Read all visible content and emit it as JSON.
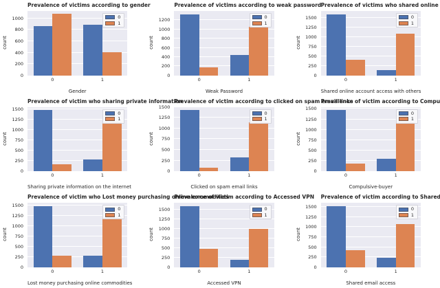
{
  "figure": {
    "background": "#ffffff",
    "axes_background": "#eaeaf2",
    "grid_color": "#ffffff",
    "series_colors": {
      "0": "#4c72b0",
      "1": "#dd8452"
    },
    "legend_labels": [
      "0",
      "1"
    ],
    "legend_position": "upper right",
    "grid": true
  },
  "chart_data": [
    {
      "type": "bar",
      "title": "Prevalence of victims according to gender",
      "xlabel": "Gender",
      "ylabel": "count",
      "categories": [
        "0",
        "1"
      ],
      "series": [
        {
          "name": "0",
          "color": "#4c72b0",
          "values": [
            870,
            890
          ]
        },
        {
          "name": "1",
          "color": "#dd8452",
          "values": [
            1080,
            410
          ]
        }
      ],
      "yticks": [
        0,
        200,
        400,
        600,
        800,
        1000
      ],
      "ylim": [
        0,
        1130
      ],
      "legend": [
        "0",
        "1"
      ],
      "legend_position": "upper right"
    },
    {
      "type": "bar",
      "title": "Prevalence of victims according to weak password",
      "xlabel": "Weak Password",
      "ylabel": "count",
      "categories": [
        "0",
        "1"
      ],
      "series": [
        {
          "name": "0",
          "color": "#4c72b0",
          "values": [
            1330,
            440
          ]
        },
        {
          "name": "1",
          "color": "#dd8452",
          "values": [
            170,
            1060
          ]
        }
      ],
      "yticks": [
        0,
        200,
        400,
        600,
        800,
        1000,
        1200
      ],
      "ylim": [
        0,
        1400
      ],
      "legend": [
        "0",
        "1"
      ],
      "legend_position": "upper right"
    },
    {
      "type": "bar",
      "title": "Prevalence of victims who shared online account access with others",
      "xlabel": "Shared online account access with others",
      "ylabel": "count",
      "categories": [
        "0",
        "1"
      ],
      "series": [
        {
          "name": "0",
          "color": "#4c72b0",
          "values": [
            1590,
            130
          ]
        },
        {
          "name": "1",
          "color": "#dd8452",
          "values": [
            400,
            1090
          ]
        }
      ],
      "yticks": [
        0,
        250,
        500,
        750,
        1000,
        1250,
        1500
      ],
      "ylim": [
        0,
        1670
      ],
      "legend": [
        "0",
        "1"
      ],
      "legend_position": "upper right"
    },
    {
      "type": "bar",
      "title": "Prevalence of victim who sharing private information",
      "xlabel": "Sharing private information on the internet",
      "ylabel": "count",
      "categories": [
        "0",
        "1"
      ],
      "series": [
        {
          "name": "0",
          "color": "#4c72b0",
          "values": [
            1480,
            290
          ]
        },
        {
          "name": "1",
          "color": "#dd8452",
          "values": [
            180,
            1180
          ]
        }
      ],
      "yticks": [
        0,
        250,
        500,
        750,
        1000,
        1250,
        1500
      ],
      "ylim": [
        0,
        1560
      ],
      "legend": [
        "0",
        "1"
      ],
      "legend_position": "upper right"
    },
    {
      "type": "bar",
      "title": "Prevalence of victim according to clicked on spam email links",
      "xlabel": "Clicked on spam email links",
      "ylabel": "count",
      "categories": [
        "0",
        "1"
      ],
      "series": [
        {
          "name": "0",
          "color": "#4c72b0",
          "values": [
            1430,
            330
          ]
        },
        {
          "name": "1",
          "color": "#dd8452",
          "values": [
            90,
            1140
          ]
        }
      ],
      "yticks": [
        0,
        250,
        500,
        750,
        1000,
        1250,
        1500
      ],
      "ylim": [
        0,
        1500
      ],
      "legend": [
        "0",
        "1"
      ],
      "legend_position": "upper right"
    },
    {
      "type": "bar",
      "title": "Prevalence of victim according to Compulsive buyer",
      "xlabel": "Compulsive-buyer",
      "ylabel": "count",
      "categories": [
        "0",
        "1"
      ],
      "series": [
        {
          "name": "0",
          "color": "#4c72b0",
          "values": [
            1470,
            310
          ]
        },
        {
          "name": "1",
          "color": "#dd8452",
          "values": [
            180,
            1180
          ]
        }
      ],
      "yticks": [
        0,
        250,
        500,
        750,
        1000,
        1250,
        1500
      ],
      "ylim": [
        0,
        1545
      ],
      "legend": [
        "0",
        "1"
      ],
      "legend_position": "upper right"
    },
    {
      "type": "bar",
      "title": "Prevalence of victim who Lost money purchasing online commodities",
      "xlabel": "Lost money purchasing online commodities",
      "ylabel": "count",
      "categories": [
        "0",
        "1"
      ],
      "series": [
        {
          "name": "0",
          "color": "#4c72b0",
          "values": [
            1480,
            290
          ]
        },
        {
          "name": "1",
          "color": "#dd8452",
          "values": [
            290,
            1200
          ]
        }
      ],
      "yticks": [
        0,
        250,
        500,
        750,
        1000,
        1250,
        1500
      ],
      "ylim": [
        0,
        1555
      ],
      "legend": [
        "0",
        "1"
      ],
      "legend_position": "upper right"
    },
    {
      "type": "bar",
      "title": "Prevalence of victim according to Accessed VPN",
      "xlabel": "Accessed VPN",
      "ylabel": "count",
      "categories": [
        "0",
        "1"
      ],
      "series": [
        {
          "name": "0",
          "color": "#4c72b0",
          "values": [
            1590,
            190
          ]
        },
        {
          "name": "1",
          "color": "#dd8452",
          "values": [
            480,
            1000
          ]
        }
      ],
      "yticks": [
        0,
        250,
        500,
        750,
        1000,
        1250,
        1500
      ],
      "ylim": [
        0,
        1670
      ],
      "legend": [
        "0",
        "1"
      ],
      "legend_position": "upper right"
    },
    {
      "type": "bar",
      "title": "Prevalence of victim according to Shared email access",
      "xlabel": "Shared email access",
      "ylabel": "count",
      "categories": [
        "0",
        "1"
      ],
      "series": [
        {
          "name": "0",
          "color": "#4c72b0",
          "values": [
            1520,
            240
          ]
        },
        {
          "name": "1",
          "color": "#dd8452",
          "values": [
            420,
            1070
          ]
        }
      ],
      "yticks": [
        0,
        250,
        500,
        750,
        1000,
        1250,
        1500
      ],
      "ylim": [
        0,
        1600
      ],
      "legend": [
        "0",
        "1"
      ],
      "legend_position": "upper right"
    }
  ]
}
